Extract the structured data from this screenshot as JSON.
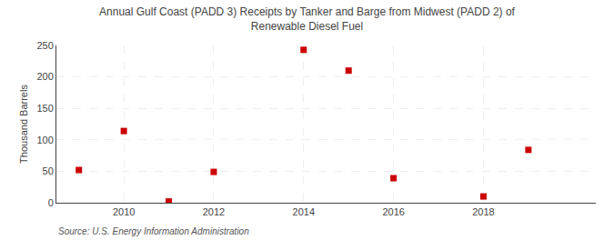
{
  "chart_data": {
    "type": "scatter",
    "title": "Annual Gulf Coast (PADD 3) Receipts by Tanker and Barge from Midwest (PADD 2) of\nRenewable Diesel Fuel",
    "ylabel": "Thousand Barrels",
    "annotations": [
      "Source: U.S. Energy Information Administration"
    ],
    "x": [
      2009,
      2010,
      2011,
      2012,
      2014,
      2015,
      2016,
      2018,
      2019
    ],
    "values": [
      52,
      114,
      2,
      49,
      243,
      210,
      39,
      10,
      84
    ],
    "color": "#cc0000",
    "marker": "square",
    "xlim": [
      2008.5,
      2020.5
    ],
    "xticks": [
      2010,
      2012,
      2014,
      2016,
      2018
    ],
    "ylim": [
      0,
      250
    ],
    "yticks": [
      0,
      50,
      100,
      150,
      200,
      250
    ],
    "grid": true
  }
}
